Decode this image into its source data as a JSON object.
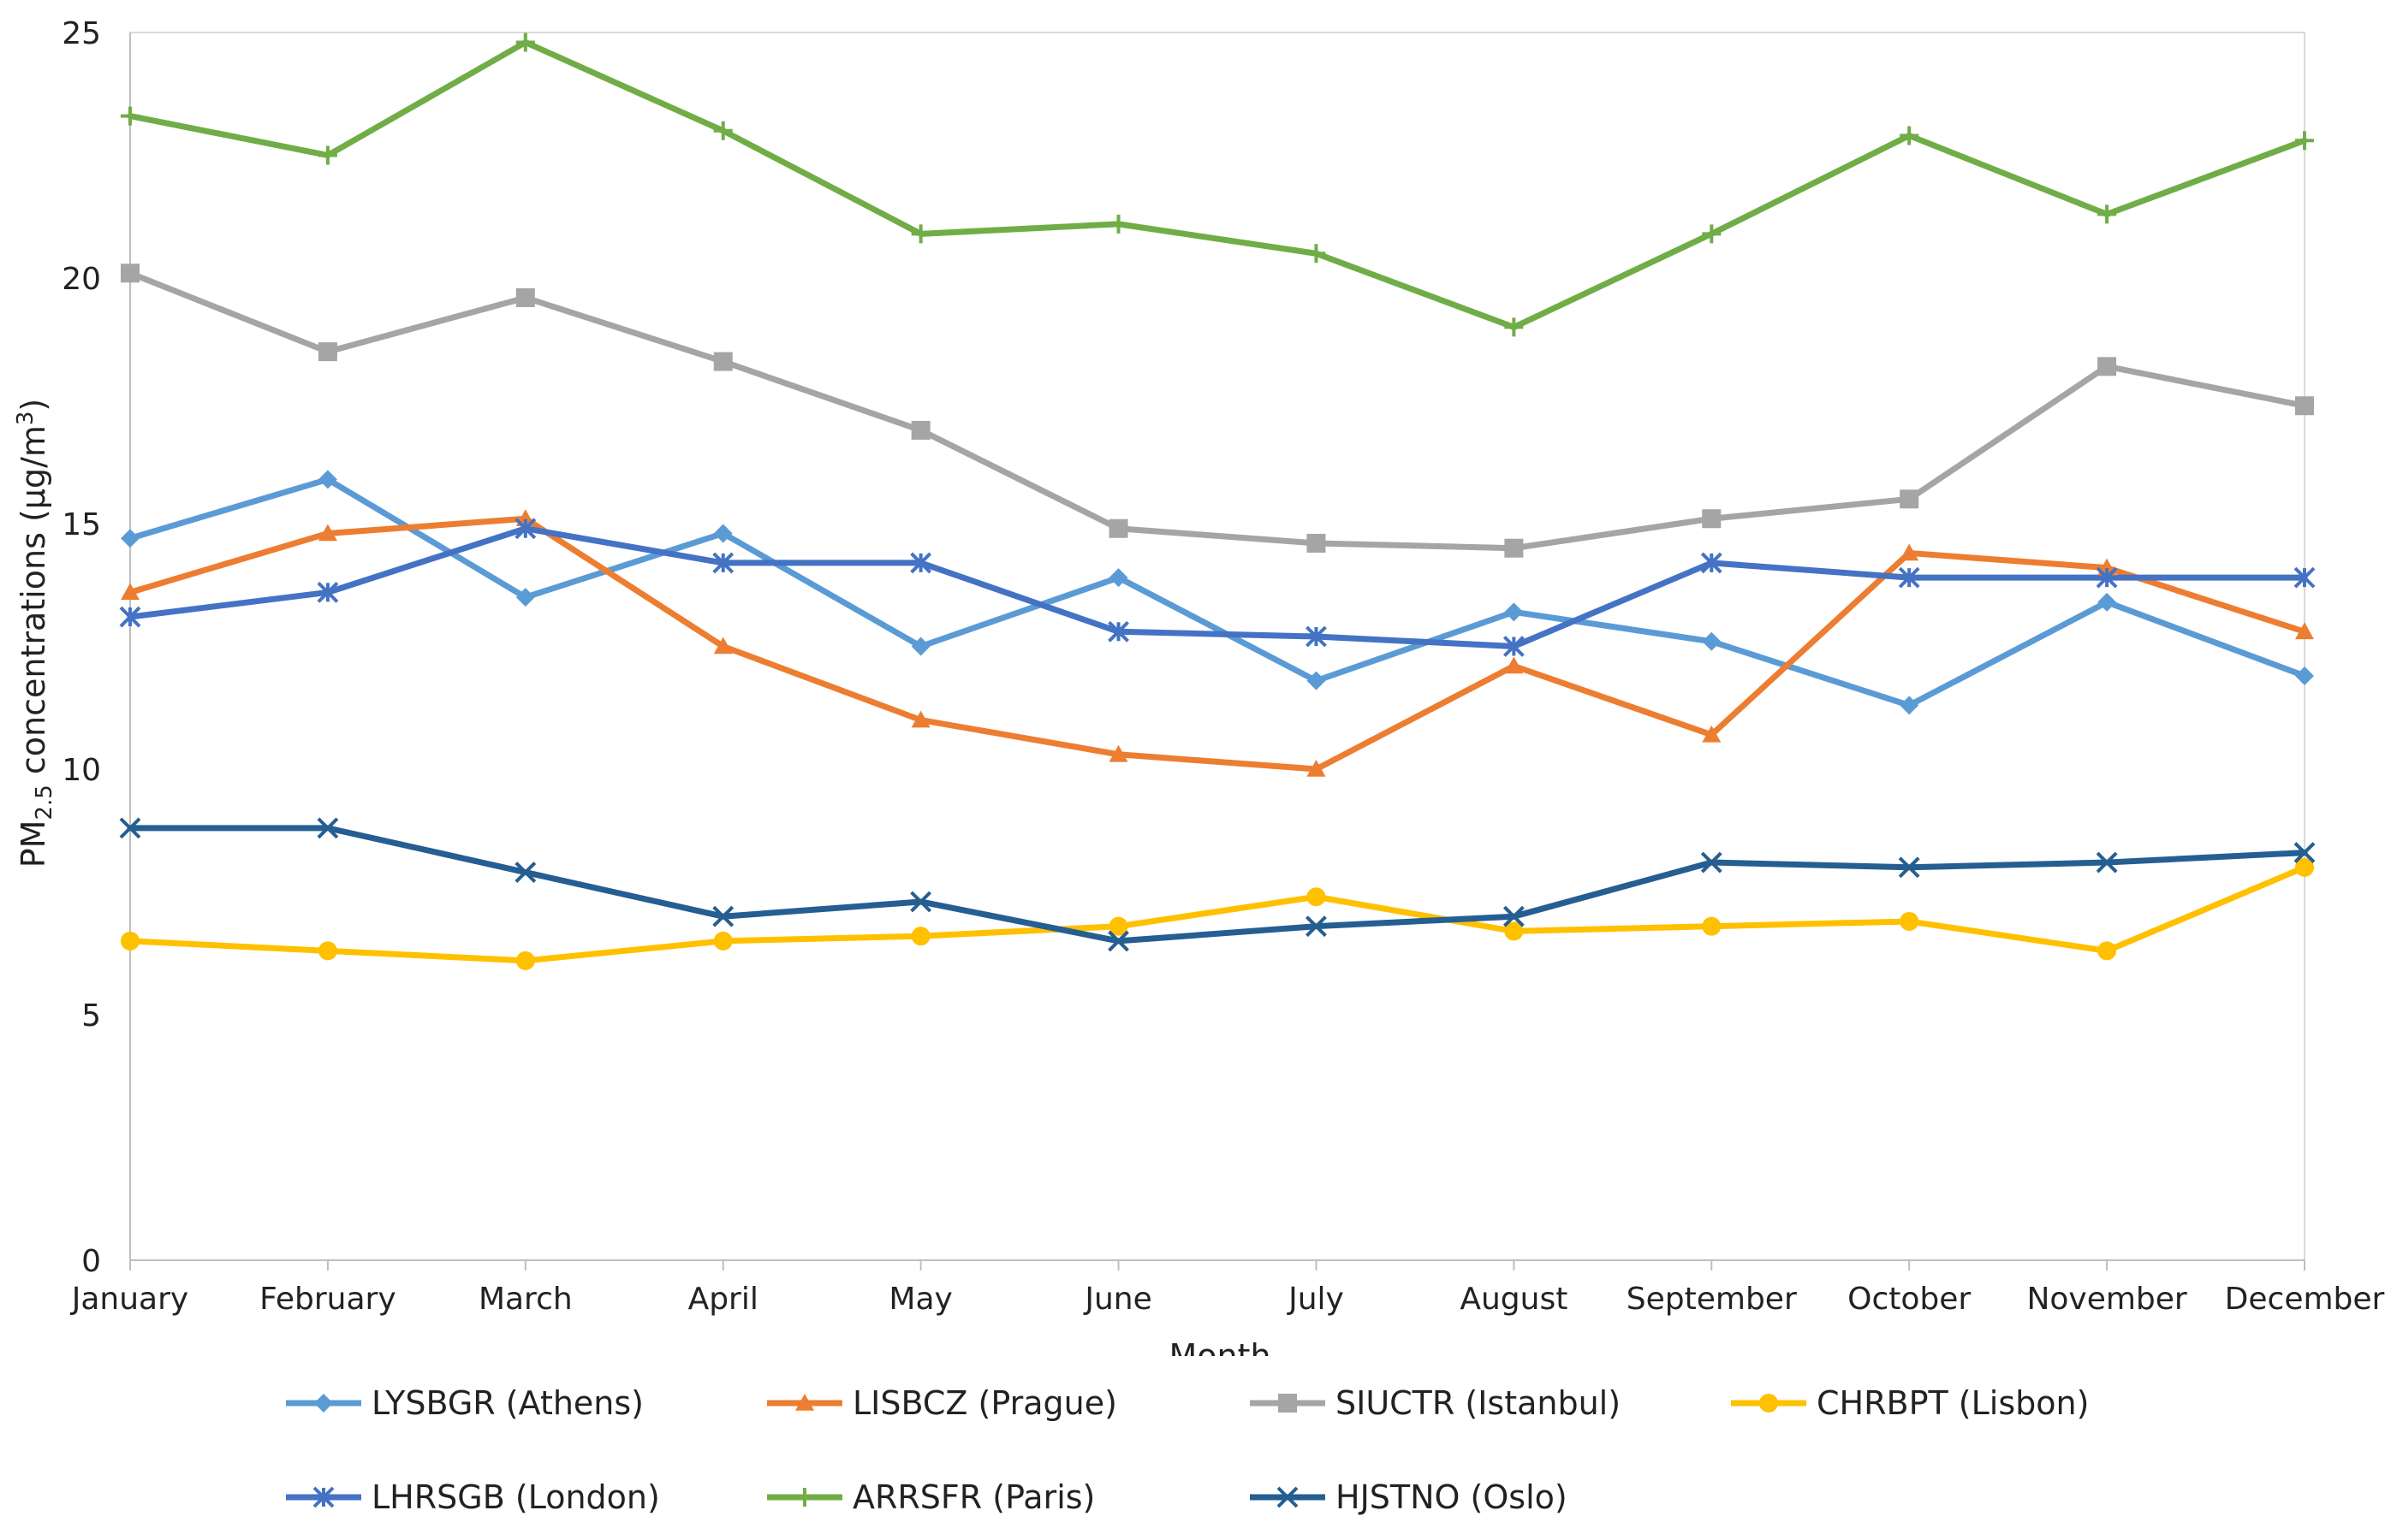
{
  "chart_data": {
    "type": "line",
    "title": "",
    "xlabel": "Month",
    "ylabel_main": "PM",
    "ylabel_sub": "2.5",
    "ylabel_rest": " concentrations  (µg/m",
    "ylabel_sup": "3",
    "ylabel_close": ")",
    "ylim": [
      0,
      25
    ],
    "yticks": [
      "0",
      "5",
      "10",
      "15",
      "20",
      "25"
    ],
    "categories": [
      "January",
      "February",
      "March",
      "April",
      "May",
      "June",
      "July",
      "August",
      "September",
      "October",
      "November",
      "December"
    ],
    "grid": false,
    "legend_position": "bottom",
    "series": [
      {
        "name": "LYSBGR (Athens)",
        "color": "#5B9BD5",
        "marker": "diamond",
        "values": [
          14.7,
          15.9,
          13.5,
          14.8,
          12.5,
          13.9,
          11.8,
          13.2,
          12.6,
          11.3,
          13.4,
          11.9
        ]
      },
      {
        "name": "LISBCZ (Prague)",
        "color": "#ED7D31",
        "marker": "triangle",
        "values": [
          13.6,
          14.8,
          15.1,
          12.5,
          11.0,
          10.3,
          10.0,
          12.1,
          10.7,
          14.4,
          14.1,
          12.8
        ]
      },
      {
        "name": "SIUCTR (Istanbul)",
        "color": "#A5A5A5",
        "marker": "square",
        "values": [
          20.1,
          18.5,
          19.6,
          18.3,
          16.9,
          14.9,
          14.6,
          14.5,
          15.1,
          15.5,
          18.2,
          17.4
        ]
      },
      {
        "name": "CHRBPT (Lisbon)",
        "color": "#FFC000",
        "marker": "circle",
        "values": [
          6.5,
          6.3,
          6.1,
          6.5,
          6.6,
          6.8,
          7.4,
          6.7,
          6.8,
          6.9,
          6.3,
          8.0
        ]
      },
      {
        "name": "LHRSGB (London)",
        "color": "#4472C4",
        "marker": "asterisk",
        "values": [
          13.1,
          13.6,
          14.9,
          14.2,
          14.2,
          12.8,
          12.7,
          12.5,
          14.2,
          13.9,
          13.9,
          13.9
        ]
      },
      {
        "name": "ARRSFR (Paris)",
        "color": "#70AD47",
        "marker": "plus",
        "values": [
          23.3,
          22.5,
          24.8,
          23.0,
          20.9,
          21.1,
          20.5,
          19.0,
          20.9,
          22.9,
          21.3,
          22.8
        ]
      },
      {
        "name": "HJSTNO (Oslo)",
        "color": "#255E91",
        "marker": "x",
        "values": [
          8.8,
          8.8,
          7.9,
          7.0,
          7.3,
          6.5,
          6.8,
          7.0,
          8.1,
          8.0,
          8.1,
          8.3
        ]
      }
    ]
  }
}
